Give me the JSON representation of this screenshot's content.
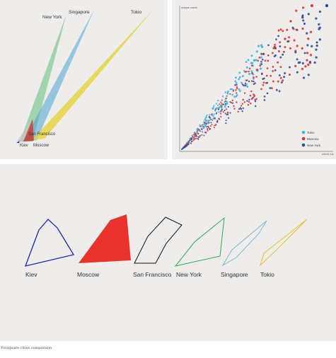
{
  "caption": "Forsquare cities comparison",
  "colors": {
    "kiev": "#1c22c4",
    "moscow": "#e8322b",
    "san_francisco": "#111111",
    "new_york": "#2fa84a",
    "singapore": "#7fb6d6",
    "tokio": "#e3c42a",
    "panel_bg": "#efedeb"
  },
  "cone_chart": {
    "labels": {
      "new_york": "New York",
      "singapore": "Singapore",
      "tokio": "Tokio",
      "san_francisco": "San Francisco",
      "kiev": "Kiev",
      "moscow": "Moscow"
    }
  },
  "chart_data": {
    "type": "scatter",
    "title": "",
    "xlabel": "check ins",
    "ylabel": "unique users",
    "legend": {
      "placement": "bottom-right",
      "entries": [
        "Tokio",
        "Moscow",
        "New York"
      ]
    },
    "series": [
      {
        "name": "Tokio",
        "color": "#3fb3e6"
      },
      {
        "name": "Moscow",
        "color": "#e0342d"
      },
      {
        "name": "New York",
        "color": "#2d4f9a"
      }
    ]
  },
  "shapes": {
    "labels": [
      "Kiev",
      "Moscow",
      "San Francisco",
      "New York",
      "Singapore",
      "Tokio"
    ]
  }
}
